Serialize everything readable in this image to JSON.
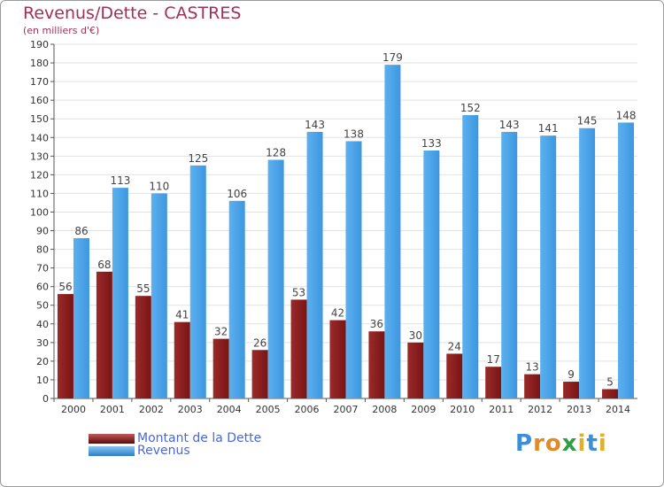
{
  "chart_data": {
    "type": "bar",
    "title": "Revenus/Dette - CASTRES",
    "subtitle": "(en milliers d'€)",
    "categories": [
      "2000",
      "2001",
      "2002",
      "2003",
      "2004",
      "2005",
      "2006",
      "2007",
      "2008",
      "2009",
      "2010",
      "2011",
      "2012",
      "2013",
      "2014"
    ],
    "series": [
      {
        "name": "Montant de la Dette",
        "color": "#7a1414",
        "values": [
          56,
          68,
          55,
          41,
          32,
          26,
          53,
          42,
          36,
          30,
          24,
          17,
          13,
          9,
          5
        ]
      },
      {
        "name": "Revenus",
        "color": "#3d97e0",
        "values": [
          86,
          113,
          110,
          125,
          106,
          128,
          143,
          138,
          179,
          133,
          152,
          143,
          141,
          145,
          148
        ]
      }
    ],
    "ylim": [
      0,
      190
    ],
    "yticks": [
      0,
      10,
      20,
      30,
      40,
      50,
      60,
      70,
      80,
      90,
      100,
      110,
      120,
      130,
      140,
      150,
      160,
      170,
      180,
      190
    ],
    "grid": true,
    "legend_position": "bottom-left"
  },
  "brand": {
    "letters": [
      "P",
      "r",
      "o",
      "x",
      "i",
      "t",
      "i"
    ],
    "colors": [
      "#3b8fd8",
      "#e08a2a",
      "#e08a2a",
      "#2f9e44",
      "#e0b02a",
      "#3b8fd8",
      "#e0b02a"
    ]
  }
}
